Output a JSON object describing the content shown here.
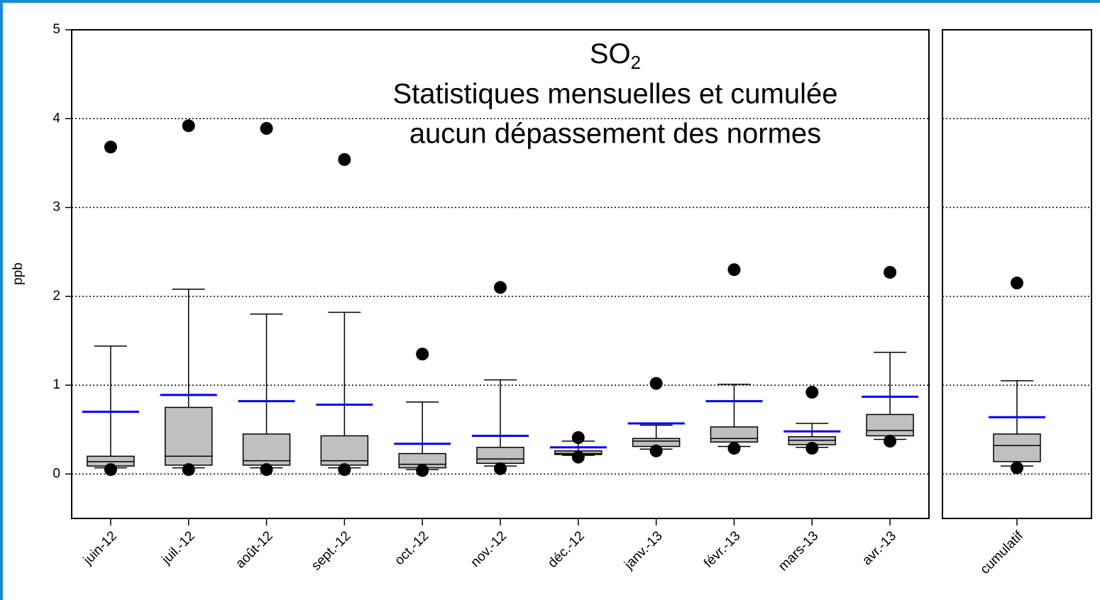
{
  "chart_data": [
    {
      "type": "box",
      "title": {
        "text": "SO",
        "subscript": "2"
      },
      "subtitle": [
        "Statistiques mensuelles et cumulée",
        "aucun dépassement des normes"
      ],
      "y_label": "ppb",
      "ylim": [
        -0.5,
        5
      ],
      "yticks": [
        0,
        1,
        2,
        3,
        4,
        5
      ],
      "grid": true,
      "box_color": "#c0c0c0",
      "mean_color": "#0000ff",
      "outlier_color": "#000000",
      "categories": [
        "juin-12",
        "juil.-12",
        "août-12",
        "sept.-12",
        "oct.-12",
        "nov.-12",
        "déc.-12",
        "janv.-13",
        "févr.-13",
        "mars-13",
        "avr.-13"
      ],
      "boxes": [
        {
          "whisker_low": 0.07,
          "q1": 0.09,
          "median": 0.14,
          "q3": 0.2,
          "whisker_high": 1.44,
          "mean": 0.7,
          "outliers": [
            0.05,
            3.68
          ]
        },
        {
          "whisker_low": 0.07,
          "q1": 0.1,
          "median": 0.2,
          "q3": 0.75,
          "whisker_high": 2.08,
          "mean": 0.89,
          "outliers": [
            0.05,
            3.92
          ]
        },
        {
          "whisker_low": 0.07,
          "q1": 0.1,
          "median": 0.15,
          "q3": 0.45,
          "whisker_high": 1.8,
          "mean": 0.82,
          "outliers": [
            0.05,
            3.89
          ]
        },
        {
          "whisker_low": 0.07,
          "q1": 0.1,
          "median": 0.15,
          "q3": 0.43,
          "whisker_high": 1.82,
          "mean": 0.78,
          "outliers": [
            0.05,
            3.54
          ]
        },
        {
          "whisker_low": 0.05,
          "q1": 0.07,
          "median": 0.11,
          "q3": 0.23,
          "whisker_high": 0.81,
          "mean": 0.34,
          "outliers": [
            0.04,
            1.35
          ]
        },
        {
          "whisker_low": 0.09,
          "q1": 0.12,
          "median": 0.17,
          "q3": 0.3,
          "whisker_high": 1.06,
          "mean": 0.43,
          "outliers": [
            0.06,
            2.1
          ]
        },
        {
          "whisker_low": 0.21,
          "q1": 0.22,
          "median": 0.23,
          "q3": 0.26,
          "whisker_high": 0.37,
          "mean": 0.3,
          "outliers": [
            0.19,
            0.41
          ]
        },
        {
          "whisker_low": 0.28,
          "q1": 0.31,
          "median": 0.37,
          "q3": 0.4,
          "whisker_high": 0.55,
          "mean": 0.57,
          "outliers": [
            0.26,
            1.02
          ]
        },
        {
          "whisker_low": 0.31,
          "q1": 0.36,
          "median": 0.4,
          "q3": 0.53,
          "whisker_high": 1.01,
          "mean": 0.82,
          "outliers": [
            0.29,
            2.3
          ]
        },
        {
          "whisker_low": 0.3,
          "q1": 0.33,
          "median": 0.38,
          "q3": 0.42,
          "whisker_high": 0.57,
          "mean": 0.48,
          "outliers": [
            0.29,
            0.92
          ]
        },
        {
          "whisker_low": 0.39,
          "q1": 0.43,
          "median": 0.49,
          "q3": 0.67,
          "whisker_high": 1.37,
          "mean": 0.87,
          "outliers": [
            0.37,
            2.27
          ]
        }
      ]
    },
    {
      "type": "box",
      "ylim": [
        -0.5,
        5
      ],
      "yticks": [
        0,
        1,
        2,
        3,
        4,
        5
      ],
      "grid": true,
      "box_color": "#c0c0c0",
      "mean_color": "#0000ff",
      "outlier_color": "#000000",
      "categories": [
        "cumulatif"
      ],
      "boxes": [
        {
          "whisker_low": 0.09,
          "q1": 0.14,
          "median": 0.32,
          "q3": 0.45,
          "whisker_high": 1.05,
          "mean": 0.64,
          "outliers": [
            0.07,
            2.15
          ]
        }
      ]
    }
  ]
}
